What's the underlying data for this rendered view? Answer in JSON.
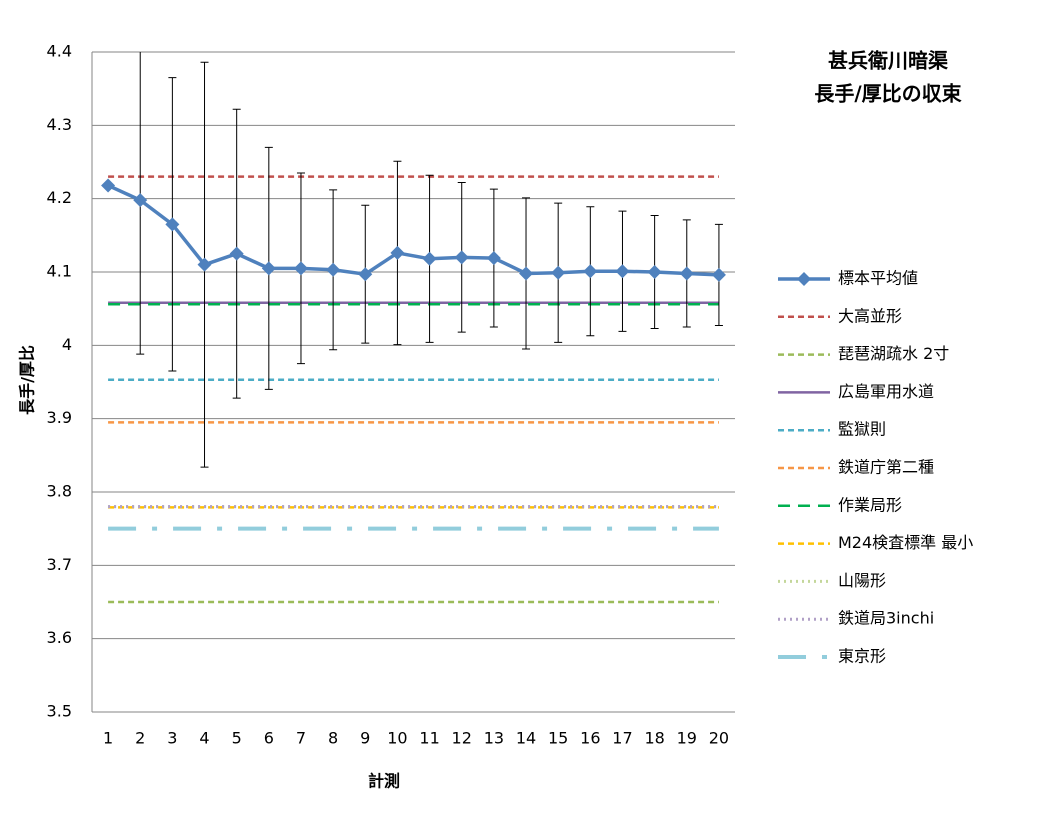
{
  "chart_data": {
    "type": "line",
    "title": [
      "甚兵衛川暗渠",
      "長手/厚比の収束"
    ],
    "xlabel": "計測",
    "ylabel": "長手/厚比",
    "categories": [
      "1",
      "2",
      "3",
      "4",
      "5",
      "6",
      "7",
      "8",
      "9",
      "10",
      "11",
      "12",
      "13",
      "14",
      "15",
      "16",
      "17",
      "18",
      "19",
      "20"
    ],
    "ylim": [
      3.5,
      4.4
    ],
    "yticks": [
      3.5,
      3.6,
      3.7,
      3.8,
      3.9,
      4,
      4.1,
      4.2,
      4.3,
      4.4
    ],
    "grid": true,
    "legend": "right",
    "series": [
      {
        "name": "標本平均値",
        "color": "#4F81BD",
        "style": "solid",
        "marker": "diamond",
        "values": [
          4.218,
          4.198,
          4.165,
          4.11,
          4.125,
          4.105,
          4.105,
          4.103,
          4.097,
          4.126,
          4.118,
          4.12,
          4.119,
          4.098,
          4.099,
          4.101,
          4.101,
          4.1,
          4.098,
          4.096
        ],
        "errors": [
          null,
          0.21,
          0.2,
          0.276,
          0.197,
          0.165,
          0.13,
          0.109,
          0.094,
          0.125,
          0.114,
          0.102,
          0.094,
          0.103,
          0.095,
          0.088,
          0.082,
          0.077,
          0.073,
          0.069
        ]
      },
      {
        "name": "大高並形",
        "color": "#C0504D",
        "style": "dashed",
        "value": 4.23
      },
      {
        "name": "琵琶湖疏水 2寸",
        "color": "#9BBB59",
        "style": "dashed",
        "value": 3.65
      },
      {
        "name": "広島軍用水道",
        "color": "#8064A2",
        "style": "solid",
        "value": 4.058
      },
      {
        "name": "監獄則",
        "color": "#4BACC6",
        "style": "dashed",
        "value": 3.953
      },
      {
        "name": "鉄道庁第二種",
        "color": "#F79646",
        "style": "dashed",
        "value": 3.895
      },
      {
        "name": "作業局形",
        "color": "#00B050",
        "style": "longdash",
        "value": 4.056
      },
      {
        "name": "M24検査標準 最小",
        "color": "#FFC000",
        "style": "dashed",
        "value": 3.779
      },
      {
        "name": "山陽形",
        "color": "#C4D79B",
        "style": "dotted",
        "value": 3.78
      },
      {
        "name": "鉄道局3inchi",
        "color": "#B1A0C7",
        "style": "dotted",
        "value": 3.78
      },
      {
        "name": "東京形",
        "color": "#92CDDC",
        "style": "dashdot",
        "value": 3.75
      }
    ]
  }
}
